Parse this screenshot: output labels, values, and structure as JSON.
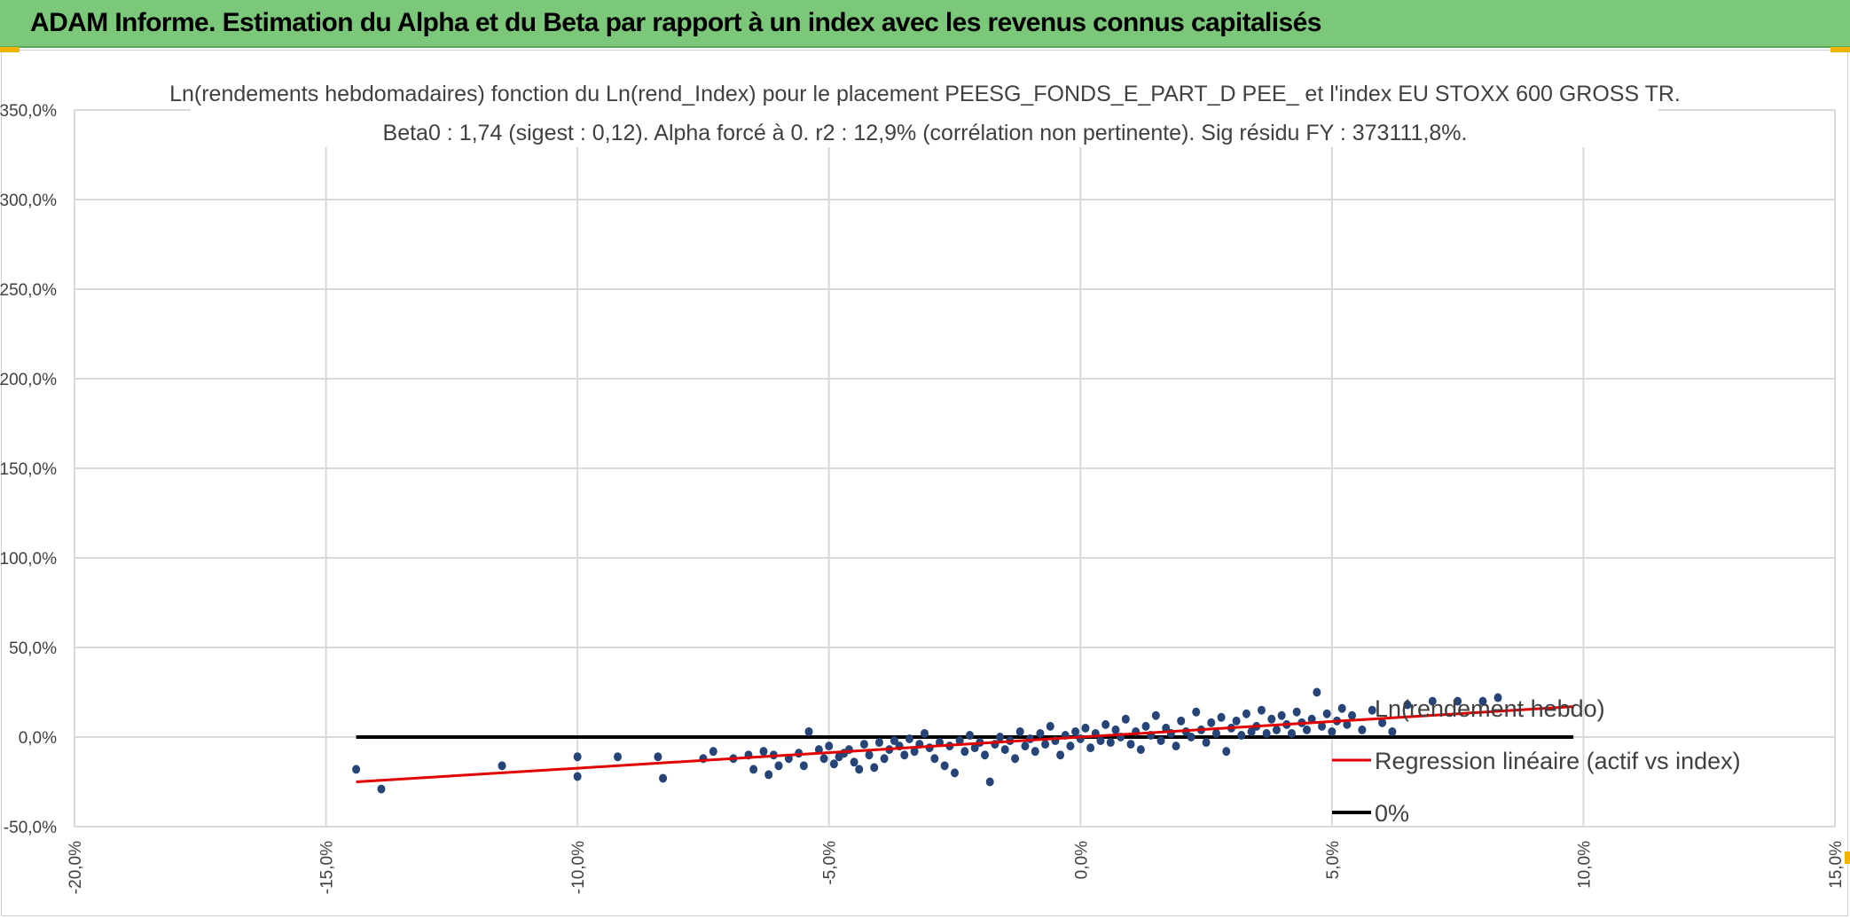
{
  "header": {
    "title": "ADAM Informe. Estimation du Alpha et du Beta par rapport à un index avec les revenus connus capitalisés"
  },
  "colors": {
    "banner": "#7cc87a",
    "points": "#264478",
    "regression": "#e00000",
    "zero_line": "#000000",
    "grid": "#d9d9d9"
  },
  "chart_data": {
    "type": "scatter",
    "title_lines": [
      "Ln(rendements hebdomadaires) fonction du Ln(rend_Index) pour le placement PEESG_FONDS_E_PART_D PEE_ et l'index EU STOXX 600 GROSS TR.",
      "Beta0 : 1,74 (sigest : 0,12).  Alpha forcé à 0. r2 : 12,9% (corrélation non pertinente). Sig résidu FY : 373111,8%."
    ],
    "xlim": [
      -0.2,
      0.15
    ],
    "ylim": [
      -0.5,
      3.5
    ],
    "x_ticks": [
      -0.2,
      -0.15,
      -0.1,
      -0.05,
      0.0,
      0.05,
      0.1,
      0.15
    ],
    "x_tick_labels": [
      "-20,0%",
      "-15,0%",
      "-10,0%",
      "-5,0%",
      "0,0%",
      "5,0%",
      "10,0%",
      "15,0%"
    ],
    "y_ticks": [
      -0.5,
      0.0,
      0.5,
      1.0,
      1.5,
      2.0,
      2.5,
      3.0,
      3.5
    ],
    "y_tick_labels": [
      "-50,0%",
      "0,0%",
      "50,0%",
      "100,0%",
      "150,0%",
      "200,0%",
      "250,0%",
      "300,0%",
      "350,0%"
    ],
    "grid": true,
    "legend_position": "right",
    "series": [
      {
        "name": "Ln(rendement hebdo)",
        "kind": "scatter",
        "points": [
          [
            -0.144,
            -0.18
          ],
          [
            -0.139,
            -0.29
          ],
          [
            -0.115,
            -0.16
          ],
          [
            -0.1,
            -0.11
          ],
          [
            -0.1,
            -0.22
          ],
          [
            -0.092,
            -0.11
          ],
          [
            -0.084,
            -0.11
          ],
          [
            -0.083,
            -0.23
          ],
          [
            -0.075,
            -0.12
          ],
          [
            -0.073,
            -0.08
          ],
          [
            -0.069,
            -0.12
          ],
          [
            -0.066,
            -0.1
          ],
          [
            -0.065,
            -0.18
          ],
          [
            -0.063,
            -0.08
          ],
          [
            -0.062,
            -0.21
          ],
          [
            -0.061,
            -0.1
          ],
          [
            -0.06,
            -0.16
          ],
          [
            -0.058,
            -0.12
          ],
          [
            -0.056,
            -0.09
          ],
          [
            -0.055,
            -0.16
          ],
          [
            -0.054,
            0.03
          ],
          [
            -0.052,
            -0.07
          ],
          [
            -0.051,
            -0.12
          ],
          [
            -0.05,
            -0.05
          ],
          [
            -0.049,
            -0.15
          ],
          [
            -0.048,
            -0.11
          ],
          [
            -0.047,
            -0.09
          ],
          [
            -0.046,
            -0.07
          ],
          [
            -0.045,
            -0.14
          ],
          [
            -0.044,
            -0.18
          ],
          [
            -0.043,
            -0.04
          ],
          [
            -0.042,
            -0.1
          ],
          [
            -0.041,
            -0.17
          ],
          [
            -0.04,
            -0.03
          ],
          [
            -0.039,
            -0.12
          ],
          [
            -0.038,
            -0.07
          ],
          [
            -0.037,
            -0.02
          ],
          [
            -0.036,
            -0.05
          ],
          [
            -0.035,
            -0.1
          ],
          [
            -0.034,
            -0.01
          ],
          [
            -0.033,
            -0.08
          ],
          [
            -0.032,
            -0.04
          ],
          [
            -0.031,
            0.02
          ],
          [
            -0.03,
            -0.06
          ],
          [
            -0.029,
            -0.12
          ],
          [
            -0.028,
            -0.03
          ],
          [
            -0.027,
            -0.16
          ],
          [
            -0.026,
            -0.05
          ],
          [
            -0.025,
            -0.2
          ],
          [
            -0.024,
            -0.02
          ],
          [
            -0.023,
            -0.08
          ],
          [
            -0.022,
            0.01
          ],
          [
            -0.021,
            -0.06
          ],
          [
            -0.02,
            -0.03
          ],
          [
            -0.019,
            -0.1
          ],
          [
            -0.018,
            -0.25
          ],
          [
            -0.017,
            -0.04
          ],
          [
            -0.016,
            0.0
          ],
          [
            -0.015,
            -0.07
          ],
          [
            -0.014,
            -0.02
          ],
          [
            -0.013,
            -0.12
          ],
          [
            -0.012,
            0.03
          ],
          [
            -0.011,
            -0.05
          ],
          [
            -0.01,
            -0.01
          ],
          [
            -0.009,
            -0.08
          ],
          [
            -0.008,
            0.02
          ],
          [
            -0.007,
            -0.04
          ],
          [
            -0.006,
            0.06
          ],
          [
            -0.005,
            -0.02
          ],
          [
            -0.004,
            -0.1
          ],
          [
            -0.003,
            0.01
          ],
          [
            -0.002,
            -0.05
          ],
          [
            -0.001,
            0.03
          ],
          [
            0.0,
            -0.01
          ],
          [
            0.001,
            0.05
          ],
          [
            0.002,
            -0.06
          ],
          [
            0.003,
            0.02
          ],
          [
            0.004,
            -0.02
          ],
          [
            0.005,
            0.07
          ],
          [
            0.006,
            -0.03
          ],
          [
            0.007,
            0.04
          ],
          [
            0.008,
            0.0
          ],
          [
            0.009,
            0.1
          ],
          [
            0.01,
            -0.04
          ],
          [
            0.011,
            0.03
          ],
          [
            0.012,
            -0.07
          ],
          [
            0.013,
            0.06
          ],
          [
            0.014,
            0.01
          ],
          [
            0.015,
            0.12
          ],
          [
            0.016,
            -0.02
          ],
          [
            0.017,
            0.05
          ],
          [
            0.018,
            0.02
          ],
          [
            0.019,
            -0.05
          ],
          [
            0.02,
            0.09
          ],
          [
            0.021,
            0.03
          ],
          [
            0.022,
            0.0
          ],
          [
            0.023,
            0.14
          ],
          [
            0.024,
            0.04
          ],
          [
            0.025,
            -0.03
          ],
          [
            0.026,
            0.08
          ],
          [
            0.027,
            0.02
          ],
          [
            0.028,
            0.11
          ],
          [
            0.029,
            -0.08
          ],
          [
            0.03,
            0.05
          ],
          [
            0.031,
            0.09
          ],
          [
            0.032,
            0.01
          ],
          [
            0.033,
            0.13
          ],
          [
            0.034,
            0.03
          ],
          [
            0.035,
            0.06
          ],
          [
            0.036,
            0.15
          ],
          [
            0.037,
            0.02
          ],
          [
            0.038,
            0.1
          ],
          [
            0.039,
            0.04
          ],
          [
            0.04,
            0.12
          ],
          [
            0.041,
            0.07
          ],
          [
            0.042,
            0.02
          ],
          [
            0.043,
            0.14
          ],
          [
            0.044,
            0.08
          ],
          [
            0.045,
            0.04
          ],
          [
            0.046,
            0.1
          ],
          [
            0.047,
            0.25
          ],
          [
            0.048,
            0.06
          ],
          [
            0.049,
            0.13
          ],
          [
            0.05,
            0.03
          ],
          [
            0.051,
            0.09
          ],
          [
            0.052,
            0.16
          ],
          [
            0.053,
            0.07
          ],
          [
            0.054,
            0.12
          ],
          [
            0.056,
            0.04
          ],
          [
            0.058,
            0.15
          ],
          [
            0.06,
            0.08
          ],
          [
            0.062,
            0.03
          ],
          [
            0.065,
            0.18
          ],
          [
            0.07,
            0.2
          ],
          [
            0.075,
            0.2
          ],
          [
            0.08,
            0.2
          ],
          [
            0.083,
            0.22
          ]
        ]
      },
      {
        "name": "Regression linéaire (actif vs index)",
        "kind": "line",
        "points": [
          [
            -0.144,
            -0.25
          ],
          [
            0.098,
            0.17
          ]
        ]
      },
      {
        "name": "0%",
        "kind": "line",
        "points": [
          [
            -0.144,
            0.0
          ],
          [
            0.098,
            0.0
          ]
        ]
      }
    ]
  }
}
